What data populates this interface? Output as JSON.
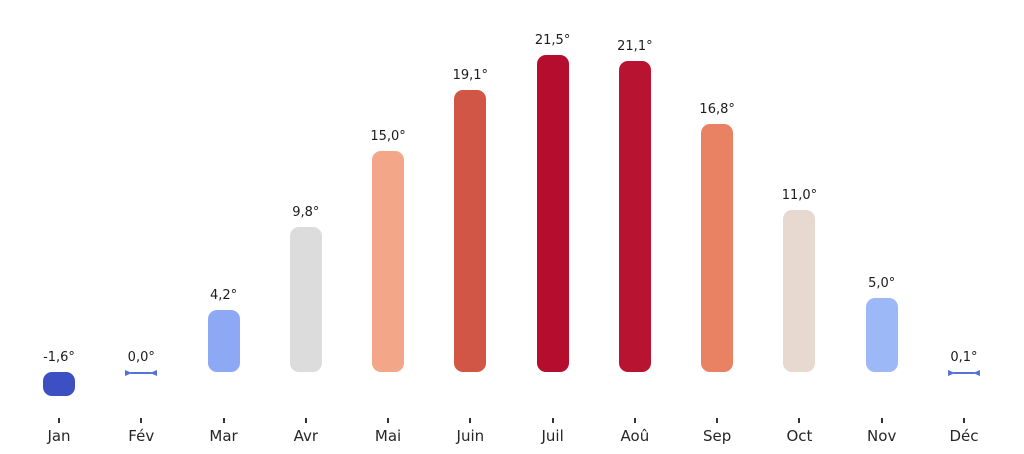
{
  "chart_data": {
    "type": "bar",
    "title": "",
    "xlabel": "",
    "ylabel": "",
    "categories": [
      "Jan",
      "Fév",
      "Mar",
      "Avr",
      "Mai",
      "Juin",
      "Juil",
      "Aoû",
      "Sep",
      "Oct",
      "Nov",
      "Déc"
    ],
    "values": [
      -1.6,
      0.0,
      4.2,
      9.8,
      15.0,
      19.1,
      21.5,
      21.1,
      16.8,
      11.0,
      5.0,
      0.1
    ],
    "value_labels": [
      "-1,6°",
      "0,0°",
      "4,2°",
      "9,8°",
      "15,0°",
      "19,1°",
      "21,5°",
      "21,1°",
      "16,8°",
      "11,0°",
      "5,0°",
      "0,1°"
    ],
    "bar_colors": [
      "#3c50c3",
      "#5570da",
      "#8da9f6",
      "#dcdcdc",
      "#f4a689",
      "#d25645",
      "#b40d2e",
      "#b81331",
      "#e98163",
      "#e7d8d0",
      "#9db8f7",
      "#5570da"
    ],
    "ylim": [
      -2.5,
      23
    ],
    "grid": false,
    "legend": null,
    "axis": "x-ticks-only",
    "colormap_hint": "coolwarm (blue=cold, red=hot)"
  },
  "colors": {
    "background": "#ffffff",
    "value_text": "#1c1c1c",
    "month_text": "#262626",
    "tick": "#333333"
  }
}
